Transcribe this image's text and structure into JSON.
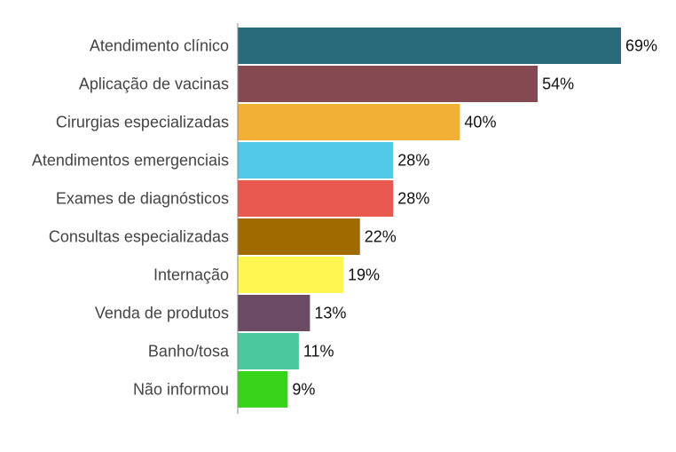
{
  "chart_data": {
    "type": "bar",
    "orientation": "horizontal",
    "categories": [
      "Atendimento clínico",
      "Aplicação de vacinas",
      "Cirurgias especializadas",
      "Atendimentos emergenciais",
      "Exames de diagnósticos",
      "Consultas especializadas",
      "Internação",
      "Venda de produtos",
      "Banho/tosa",
      "Não informou"
    ],
    "values": [
      69,
      54,
      40,
      28,
      28,
      22,
      19,
      13,
      11,
      9
    ],
    "value_labels": [
      "69%",
      "54%",
      "40%",
      "28%",
      "28%",
      "22%",
      "19%",
      "13%",
      "11%",
      "9%"
    ],
    "colors": [
      "#296b7b",
      "#854a51",
      "#f2b134",
      "#52c9e8",
      "#e85a4f",
      "#a06a00",
      "#fff652",
      "#6b4b63",
      "#4bc89d",
      "#38d41c"
    ],
    "xlim": [
      0,
      69
    ],
    "grid": false,
    "legend": "none"
  }
}
